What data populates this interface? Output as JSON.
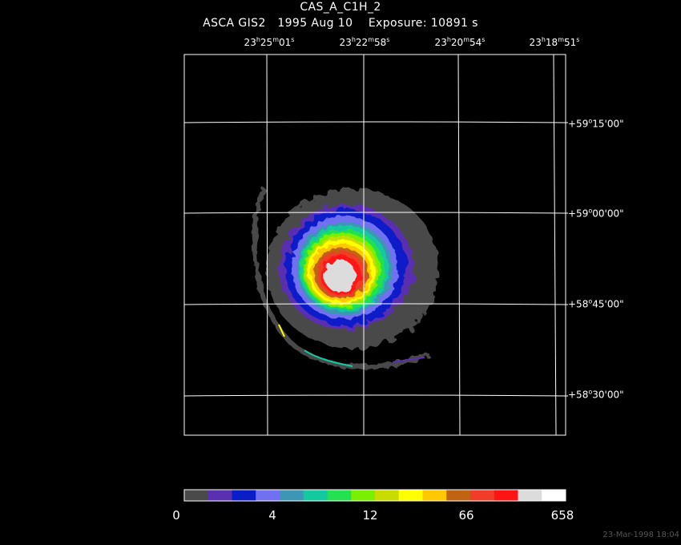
{
  "header": {
    "title": "CAS_A_C1H_2",
    "instrument": "ASCA GIS2",
    "date": "1995 Aug 10",
    "exposure": "Exposure: 10891 s"
  },
  "axes": {
    "ra_labels": [
      {
        "h": "23",
        "m": "25",
        "s": "01"
      },
      {
        "h": "23",
        "m": "22",
        "s": "58"
      },
      {
        "h": "23",
        "m": "20",
        "s": "54"
      },
      {
        "h": "23",
        "m": "18",
        "s": "51"
      }
    ],
    "dec_labels": [
      {
        "d": "+59",
        "m": "15",
        "s": "00"
      },
      {
        "d": "+59",
        "m": "00",
        "s": "00"
      },
      {
        "d": "+58",
        "m": "45",
        "s": "00"
      },
      {
        "d": "+58",
        "m": "30",
        "s": "00"
      }
    ]
  },
  "colorbar": {
    "colors": [
      "#4a4a4a",
      "#5a2fb0",
      "#0a1ec8",
      "#7070f0",
      "#3c96b4",
      "#14c8a0",
      "#23e150",
      "#78f000",
      "#c8dc00",
      "#ffff00",
      "#ffc800",
      "#c06414",
      "#f03c28",
      "#ff1414",
      "#dcdcdc",
      "#ffffff"
    ],
    "labels": [
      "0",
      "4",
      "12",
      "66",
      "658"
    ]
  },
  "image_levels": {
    "contours": [
      "#4a4a4a",
      "#5a2fb0",
      "#0a1ec8",
      "#7070f0",
      "#3c96b4",
      "#14c8a0",
      "#23e150",
      "#78f000",
      "#c8dc00",
      "#ffff00",
      "#ffc800",
      "#c06414",
      "#f03c28",
      "#ff1414",
      "#dcdcdc"
    ]
  },
  "footer": {
    "timestamp": "23-Mar-1998 18:04"
  }
}
